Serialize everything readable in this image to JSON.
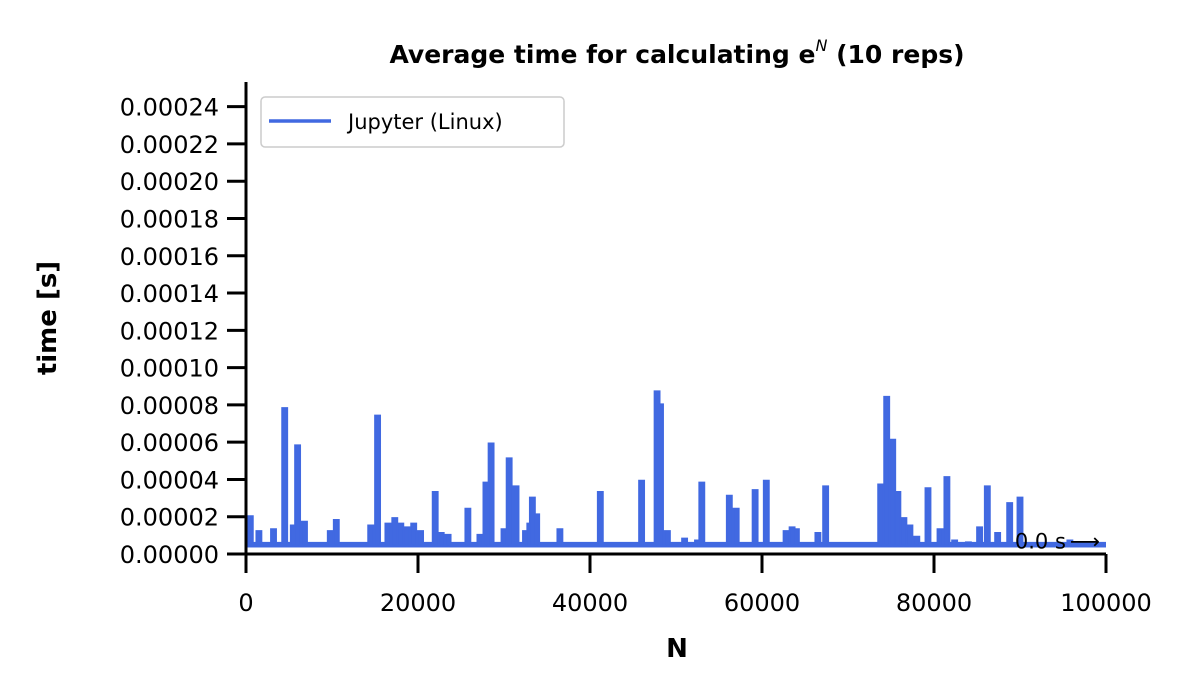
{
  "chart_data": {
    "type": "line",
    "title": "Average time for calculating e",
    "title_superscript": "N",
    "title_suffix": " (10 reps)",
    "xlabel": "N",
    "ylabel": "time [s]",
    "xlim": [
      0,
      100000
    ],
    "ylim": [
      0,
      0.00025
    ],
    "xticks": [
      0,
      20000,
      40000,
      60000,
      80000,
      100000
    ],
    "xtick_labels": [
      "0",
      "20000",
      "40000",
      "60000",
      "80000",
      "100000"
    ],
    "yticks": [
      0,
      2e-05,
      4e-05,
      6e-05,
      8e-05,
      0.0001,
      0.00012,
      0.00014,
      0.00016,
      0.00018,
      0.0002,
      0.00022,
      0.00024
    ],
    "ytick_labels": [
      "0.00000",
      "0.00002",
      "0.00004",
      "0.00006",
      "0.00008",
      "0.00010",
      "0.00012",
      "0.00014",
      "0.00016",
      "0.00018",
      "0.00020",
      "0.00022",
      "0.00024"
    ],
    "grid": false,
    "legend_position": "top-left",
    "baseline": 5e-06,
    "series": [
      {
        "name": "Jupyter (Linux)",
        "color": "#4169e1",
        "spikes": [
          [
            500,
            2e-05
          ],
          [
            1500,
            1.2e-05
          ],
          [
            3200,
            1.3e-05
          ],
          [
            4500,
            7.8e-05
          ],
          [
            5500,
            1.5e-05
          ],
          [
            6000,
            5.8e-05
          ],
          [
            6800,
            1.7e-05
          ],
          [
            9800,
            1.2e-05
          ],
          [
            10500,
            1.8e-05
          ],
          [
            14500,
            1.5e-05
          ],
          [
            15300,
            7.4e-05
          ],
          [
            16500,
            1.6e-05
          ],
          [
            17300,
            1.9e-05
          ],
          [
            18000,
            1.6e-05
          ],
          [
            18700,
            1.4e-05
          ],
          [
            19500,
            1.6e-05
          ],
          [
            20300,
            1.2e-05
          ],
          [
            22000,
            3.3e-05
          ],
          [
            22700,
            1.1e-05
          ],
          [
            23500,
            1e-05
          ],
          [
            25800,
            2.4e-05
          ],
          [
            27200,
            1e-05
          ],
          [
            27900,
            3.8e-05
          ],
          [
            28500,
            5.9e-05
          ],
          [
            30000,
            1.3e-05
          ],
          [
            30600,
            5.1e-05
          ],
          [
            31400,
            3.6e-05
          ],
          [
            32500,
            1.2e-05
          ],
          [
            33000,
            1.6e-05
          ],
          [
            33300,
            3e-05
          ],
          [
            33800,
            2.1e-05
          ],
          [
            36500,
            1.3e-05
          ],
          [
            41200,
            3.3e-05
          ],
          [
            46000,
            3.9e-05
          ],
          [
            47800,
            8.7e-05
          ],
          [
            48200,
            8e-05
          ],
          [
            49000,
            1.2e-05
          ],
          [
            51000,
            8e-06
          ],
          [
            52500,
            7e-06
          ],
          [
            53000,
            3.8e-05
          ],
          [
            56200,
            3.1e-05
          ],
          [
            57000,
            2.4e-05
          ],
          [
            59200,
            3.4e-05
          ],
          [
            60500,
            3.9e-05
          ],
          [
            62800,
            1.2e-05
          ],
          [
            63500,
            1.4e-05
          ],
          [
            64000,
            1.3e-05
          ],
          [
            66500,
            1.1e-05
          ],
          [
            67400,
            3.6e-05
          ],
          [
            73800,
            3.7e-05
          ],
          [
            74500,
            8.4e-05
          ],
          [
            75200,
            6.1e-05
          ],
          [
            75800,
            3.3e-05
          ],
          [
            76500,
            1.9e-05
          ],
          [
            77200,
            1.5e-05
          ],
          [
            78000,
            9e-06
          ],
          [
            79300,
            3.5e-05
          ],
          [
            80700,
            1.3e-05
          ],
          [
            81500,
            4.1e-05
          ],
          [
            82400,
            7e-06
          ],
          [
            84000,
            6e-06
          ],
          [
            85300,
            1.4e-05
          ],
          [
            86200,
            3.6e-05
          ],
          [
            87400,
            1.1e-05
          ],
          [
            88800,
            2.7e-05
          ],
          [
            90000,
            3e-05
          ],
          [
            95800,
            7e-06
          ]
        ]
      }
    ],
    "annotation": {
      "text": "0.0 s",
      "arrow": "⟶",
      "x": 90000,
      "y": 4e-06
    }
  }
}
